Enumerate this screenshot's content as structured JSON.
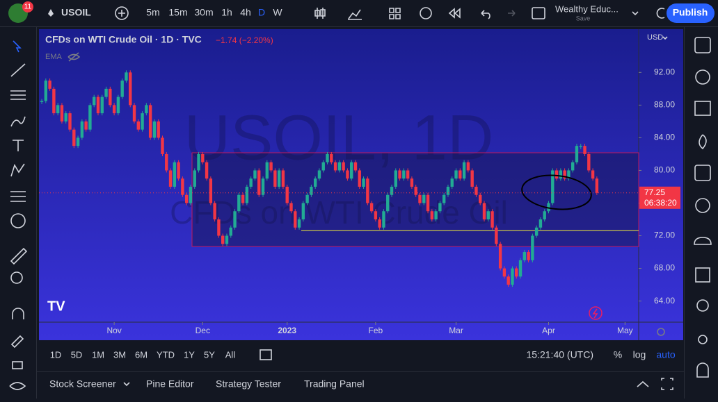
{
  "ui": {
    "badge": "11",
    "symbol": "USOIL",
    "timeframes": [
      "5m",
      "15m",
      "30m",
      "1h",
      "4h",
      "D",
      "W"
    ],
    "layout_name": "Wealthy Educ...",
    "layout_state": "Save",
    "publish": "Publish",
    "currency": "USD",
    "ema": "EMA",
    "watermark_symbol": "USOIL, 1D",
    "watermark_name": "CFDs on WTI Crude Oil",
    "ranges": [
      "1D",
      "5D",
      "1M",
      "3M",
      "6M",
      "YTD",
      "1Y",
      "5Y",
      "All"
    ],
    "clock": "15:21:40 (UTC)",
    "percent": "%",
    "log": "log",
    "auto": "auto",
    "tabs": [
      "Stock Screener",
      "Pine Editor",
      "Strategy Tester",
      "Trading Panel"
    ]
  },
  "chart_data": {
    "type": "candlestick",
    "title": "CFDs on WTI Crude Oil · 1D · TVC",
    "change": "−1.74 (−2.20%)",
    "countdown": "06:38:20",
    "up_color": "#22ab94",
    "down_color": "#f23645",
    "values": [
      88.5,
      91,
      90,
      87,
      88,
      86,
      87,
      85,
      83,
      84,
      86,
      85,
      88,
      89,
      87,
      89,
      90,
      88,
      87,
      89,
      91,
      92,
      88,
      86,
      85,
      87,
      88,
      84,
      86,
      84,
      82,
      80,
      78,
      81,
      79,
      77,
      76,
      78,
      80,
      82,
      81,
      79,
      76,
      74,
      72,
      71,
      72,
      73,
      75,
      77,
      76,
      78,
      79,
      80,
      77,
      79,
      81,
      80,
      78,
      80,
      78,
      76,
      75,
      73,
      74,
      76,
      77,
      78,
      79,
      80,
      81,
      82,
      81,
      80,
      81,
      80,
      79,
      81,
      80,
      78,
      79,
      76,
      75,
      74,
      73,
      75,
      77,
      78,
      80,
      79,
      80,
      79,
      78,
      77,
      76,
      77,
      75,
      74,
      75,
      76,
      77,
      78,
      79,
      80,
      79,
      81,
      80,
      78,
      77,
      76,
      74,
      75,
      73,
      71,
      68,
      67,
      66,
      68,
      67,
      69,
      70,
      69,
      72,
      73,
      74,
      75,
      76,
      80,
      79,
      80,
      79,
      80,
      81,
      83,
      83,
      82,
      80,
      79,
      77.25
    ],
    "xlim": [
      -0.7,
      148.4
    ],
    "xticks": [
      {
        "value": 18,
        "label": "Nov"
      },
      {
        "value": 40,
        "label": "Dec"
      },
      {
        "value": 61,
        "label": "2023"
      },
      {
        "value": 83,
        "label": "Feb"
      },
      {
        "value": 103,
        "label": "Mar"
      },
      {
        "value": 126,
        "label": "Apr"
      },
      {
        "value": 145,
        "label": "May"
      }
    ],
    "ylim": [
      61.5,
      97.3
    ],
    "yticks": [
      {
        "value": 64,
        "label": "64.00"
      },
      {
        "value": 68,
        "label": "68.00"
      },
      {
        "value": 72,
        "label": "72.00"
      },
      {
        "value": 76,
        "label": "76.00"
      },
      {
        "value": 80,
        "label": "80.00"
      },
      {
        "value": 84,
        "label": "84.00"
      },
      {
        "value": 88,
        "label": "88.00"
      },
      {
        "value": 92,
        "label": "92.00"
      }
    ]
  }
}
